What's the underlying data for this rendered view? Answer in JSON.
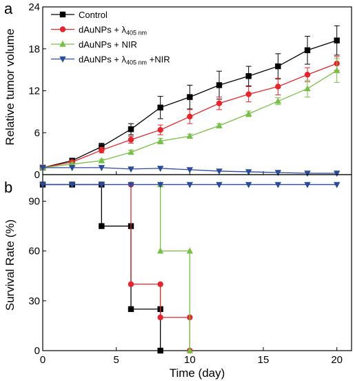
{
  "chart_data": [
    {
      "panel": "a",
      "type": "line",
      "ylabel": "Relative tumor volume",
      "xlim": [
        0,
        21
      ],
      "ylim": [
        0,
        24
      ],
      "yticks": [
        0,
        6,
        12,
        18,
        24
      ],
      "legend_position": "top-left",
      "series": [
        {
          "name": "Control",
          "color": "#000000",
          "marker": "square",
          "x": [
            0,
            2,
            4,
            6,
            8,
            10,
            12,
            14,
            16,
            18,
            20
          ],
          "y": [
            1.0,
            2.0,
            4.0,
            6.5,
            9.6,
            11.1,
            12.8,
            14.1,
            15.5,
            17.8,
            19.2
          ],
          "err": [
            0,
            0.3,
            0.5,
            0.8,
            1.6,
            1.7,
            2.0,
            1.4,
            1.8,
            2.0,
            2.1
          ]
        },
        {
          "name": "dAuNPs + λ405 nm",
          "name_main": "dAuNPs + λ",
          "name_sub": "405 nm",
          "name_tail": "",
          "color": "#e8232a",
          "marker": "circle",
          "x": [
            0,
            2,
            4,
            6,
            8,
            10,
            12,
            14,
            16,
            18,
            20
          ],
          "y": [
            1.0,
            1.8,
            3.5,
            5.0,
            6.4,
            8.3,
            10.2,
            11.5,
            12.6,
            14.3,
            15.9
          ],
          "err": [
            0,
            0.2,
            0.4,
            0.5,
            0.7,
            1.0,
            0.9,
            1.1,
            1.2,
            1.0,
            1.0
          ]
        },
        {
          "name": "dAuNPs + NIR",
          "color": "#76c043",
          "marker": "triangle-up",
          "x": [
            0,
            2,
            4,
            6,
            8,
            10,
            12,
            14,
            16,
            18,
            20
          ],
          "y": [
            1.0,
            1.5,
            2.0,
            3.2,
            4.8,
            5.5,
            7.0,
            8.7,
            10.5,
            12.3,
            14.9
          ],
          "err": [
            0,
            0.2,
            0.2,
            0.3,
            0.4,
            0.3,
            0.3,
            0.4,
            0.5,
            1.2,
            1.7
          ]
        },
        {
          "name": "dAuNPs + λ405 nm +NIR",
          "name_main": "dAuNPs + λ",
          "name_sub": "405 nm",
          "name_tail": " +NIR",
          "color": "#2a4b9b",
          "marker": "triangle-down",
          "x": [
            0,
            2,
            4,
            6,
            8,
            10,
            12,
            14,
            16,
            18,
            20
          ],
          "y": [
            1.0,
            1.0,
            1.0,
            0.8,
            0.9,
            0.7,
            0.5,
            0.4,
            0.3,
            0.2,
            0.2
          ],
          "err": [
            0,
            0.1,
            0.1,
            0.1,
            0.1,
            0.1,
            0.1,
            0.05,
            0.05,
            0.05,
            0.05
          ]
        }
      ]
    },
    {
      "panel": "b",
      "type": "line",
      "step": true,
      "xlabel": "Time (day)",
      "ylabel": "Survival Rate (%)",
      "xlim": [
        0,
        21
      ],
      "ylim": [
        0,
        106
      ],
      "xticks": [
        0,
        5,
        10,
        15,
        20
      ],
      "yticks": [
        0,
        30,
        60,
        90
      ],
      "series": [
        {
          "name": "Control",
          "color": "#000000",
          "marker": "square",
          "x": [
            0,
            2,
            4,
            4,
            6,
            6,
            8,
            8
          ],
          "y": [
            100,
            100,
            100,
            75,
            75,
            25,
            25,
            0
          ]
        },
        {
          "name": "dAuNPs + λ405 nm",
          "color": "#e8232a",
          "marker": "circle",
          "x": [
            6,
            6,
            8,
            8,
            10,
            10
          ],
          "y": [
            100,
            40,
            40,
            20,
            20,
            0
          ]
        },
        {
          "name": "dAuNPs + NIR",
          "color": "#76c043",
          "marker": "triangle-up",
          "x": [
            8,
            8,
            10,
            10
          ],
          "y": [
            100,
            60,
            60,
            0
          ]
        },
        {
          "name": "dAuNPs + λ405 nm +NIR",
          "color": "#2a4b9b",
          "marker": "triangle-down",
          "x": [
            0,
            2,
            4,
            6,
            8,
            10,
            12,
            14,
            16,
            18,
            20
          ],
          "y": [
            100,
            100,
            100,
            100,
            100,
            100,
            100,
            100,
            100,
            100,
            100
          ]
        }
      ]
    }
  ],
  "labels": {
    "panel_a": "a",
    "panel_b": "b",
    "ylabel_a": "Relative tumor volume",
    "ylabel_b": "Survival Rate (%)",
    "xlabel": "Time (day)"
  }
}
